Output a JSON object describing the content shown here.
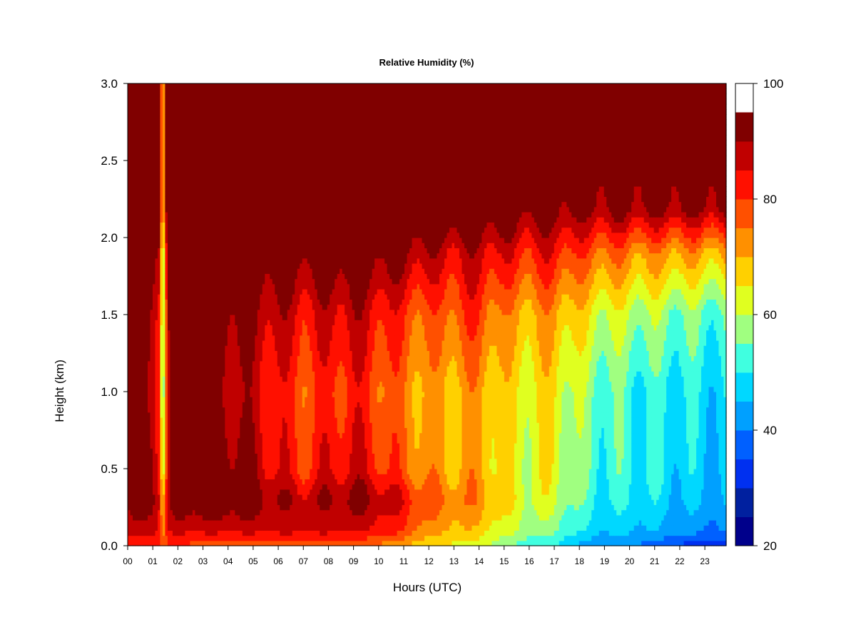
{
  "chart_data": {
    "type": "heatmap",
    "title": "Relative Humidity (%)",
    "xlabel": "Hours (UTC)",
    "ylabel": "Height (km)",
    "x_tick_labels": [
      "00",
      "01",
      "02",
      "03",
      "04",
      "05",
      "06",
      "07",
      "08",
      "09",
      "10",
      "11",
      "12",
      "13",
      "14",
      "15",
      "16",
      "17",
      "18",
      "19",
      "20",
      "21",
      "22",
      "23"
    ],
    "xlim": [
      0,
      23.85
    ],
    "y_ticks": [
      0.0,
      0.5,
      1.0,
      1.5,
      2.0,
      2.5,
      3.0
    ],
    "y_tick_labels": [
      "0.0",
      "0.5",
      "1.0",
      "1.5",
      "2.0",
      "2.5",
      "3.0"
    ],
    "ylim": [
      0,
      3.0
    ],
    "colorbar": {
      "min": 20,
      "max": 100,
      "step": 5,
      "tick_values": [
        20,
        40,
        60,
        80,
        100
      ],
      "tick_labels": [
        "20",
        "40",
        "60",
        "80",
        "100"
      ],
      "colors": [
        "#00008B",
        "#00209F",
        "#0030F0",
        "#0060FF",
        "#00A0FF",
        "#00D8FF",
        "#40FFE0",
        "#A0FF80",
        "#E0FF20",
        "#FFD000",
        "#FF9000",
        "#FF5000",
        "#FF1000",
        "#C00000",
        "#800000"
      ]
    },
    "profile_hours": [
      0,
      1,
      1.25,
      1.4,
      1.6,
      2,
      3,
      4,
      5,
      6,
      7,
      8,
      9,
      10,
      11,
      12,
      13,
      14,
      15,
      16,
      17,
      18,
      19,
      20,
      21,
      22,
      23,
      23.85
    ],
    "profile_heights_km": [
      0.0,
      0.1,
      0.3,
      0.5,
      1.0,
      1.5,
      1.9,
      2.2,
      3.0
    ],
    "values_percent": [
      [
        80,
        86,
        92,
        92,
        90,
        92,
        96,
        100,
        100
      ],
      [
        80,
        88,
        94,
        93,
        90,
        92,
        96,
        100,
        100
      ],
      [
        80,
        84,
        88,
        86,
        84,
        86,
        92,
        100,
        100
      ],
      [
        78,
        72,
        68,
        60,
        55,
        56,
        58,
        68,
        70
      ],
      [
        80,
        84,
        88,
        86,
        84,
        88,
        94,
        100,
        100
      ],
      [
        80,
        86,
        96,
        98,
        96,
        98,
        100,
        100,
        100
      ],
      [
        78,
        86,
        96,
        96,
        94,
        96,
        100,
        100,
        100
      ],
      [
        78,
        86,
        96,
        94,
        90,
        94,
        100,
        100,
        100
      ],
      [
        78,
        86,
        94,
        90,
        86,
        90,
        96,
        100,
        100
      ],
      [
        78,
        86,
        90,
        84,
        82,
        88,
        96,
        100,
        100
      ],
      [
        78,
        86,
        88,
        80,
        78,
        84,
        94,
        100,
        100
      ],
      [
        76,
        86,
        90,
        84,
        80,
        86,
        96,
        100,
        100
      ],
      [
        76,
        86,
        92,
        86,
        82,
        88,
        96,
        100,
        100
      ],
      [
        74,
        84,
        90,
        82,
        78,
        84,
        94,
        100,
        100
      ],
      [
        70,
        80,
        84,
        76,
        74,
        80,
        92,
        100,
        100
      ],
      [
        66,
        72,
        78,
        72,
        70,
        76,
        88,
        100,
        100
      ],
      [
        64,
        70,
        74,
        70,
        70,
        78,
        86,
        100,
        100
      ],
      [
        62,
        68,
        74,
        72,
        72,
        80,
        88,
        98,
        100
      ],
      [
        56,
        62,
        66,
        64,
        66,
        72,
        84,
        96,
        100
      ],
      [
        52,
        58,
        62,
        62,
        64,
        70,
        82,
        94,
        100
      ],
      [
        50,
        56,
        62,
        64,
        66,
        72,
        84,
        94,
        100
      ],
      [
        44,
        50,
        54,
        56,
        58,
        66,
        78,
        92,
        100
      ],
      [
        40,
        46,
        50,
        52,
        54,
        62,
        76,
        92,
        100
      ],
      [
        40,
        46,
        50,
        52,
        52,
        60,
        74,
        92,
        100
      ],
      [
        38,
        44,
        48,
        50,
        50,
        58,
        72,
        92,
        100
      ],
      [
        34,
        42,
        46,
        48,
        50,
        56,
        72,
        92,
        100
      ],
      [
        32,
        40,
        44,
        46,
        48,
        54,
        70,
        92,
        100
      ],
      [
        32,
        40,
        44,
        46,
        48,
        54,
        70,
        92,
        100
      ]
    ]
  }
}
